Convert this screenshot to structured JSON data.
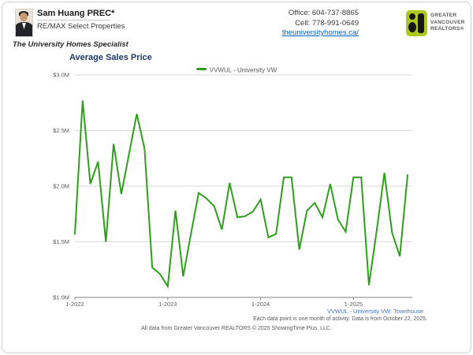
{
  "header": {
    "agent_name": "Sam Huang PREC*",
    "brokerage": "RE/MAX Select Properties",
    "tagline": "The University Homes Specialist",
    "office_phone": "Office: 604-737-8865",
    "cell_phone": "Cell: 778-991-0649",
    "website": "theuniversityhomes.ca/",
    "logo": {
      "line1": "GREATER",
      "line2": "VANCOUVER",
      "line3": "REALTORS®",
      "brand_green": "#aec81f"
    }
  },
  "chart": {
    "title": "Average Sales Price",
    "legend_label": "VVWUL - University VW",
    "series_note": "VVWUL - University VW: Townhouse",
    "data_note": "Each data point is one month of activity. Data is from October 22, 2025.",
    "copyright": "All data from Greater Vancouver REALTORS © 2025 ShowingTime Plus, LLC.",
    "line_color": "#2f9e1c",
    "title_color": "#1f3864",
    "note_color": "#4472c4"
  },
  "chart_data": {
    "type": "line",
    "title": "Average Sales Price",
    "legend": [
      "VVWUL - University VW"
    ],
    "legend_position": "top-center",
    "grid": true,
    "ylabel": "",
    "xlabel": "",
    "ylim": [
      1.0,
      3.0
    ],
    "y_unit": "$M",
    "y_ticks": [
      1.0,
      1.5,
      2.0,
      2.5,
      3.0
    ],
    "y_tick_labels": [
      "$1.0M",
      "$1.5M",
      "$2.0M",
      "$2.5M",
      "$3.0M"
    ],
    "x_tick_month_indices": [
      0,
      12,
      24,
      36
    ],
    "x_tick_labels": [
      "1-2022",
      "1-2023",
      "1-2024",
      "1-2025"
    ],
    "x": [
      "2022-01",
      "2022-02",
      "2022-03",
      "2022-04",
      "2022-05",
      "2022-06",
      "2022-07",
      "2022-08",
      "2022-09",
      "2022-10",
      "2022-11",
      "2022-12",
      "2023-01",
      "2023-02",
      "2023-03",
      "2023-04",
      "2023-05",
      "2023-06",
      "2023-07",
      "2023-08",
      "2023-09",
      "2023-10",
      "2023-11",
      "2023-12",
      "2024-01",
      "2024-02",
      "2024-03",
      "2024-04",
      "2024-05",
      "2024-06",
      "2024-07",
      "2024-08",
      "2024-09",
      "2024-10",
      "2024-11",
      "2024-12",
      "2025-01",
      "2025-02",
      "2025-03",
      "2025-04",
      "2025-05",
      "2025-06",
      "2025-07",
      "2025-08"
    ],
    "values": [
      1.57,
      2.77,
      2.02,
      2.22,
      1.5,
      2.38,
      1.93,
      2.29,
      2.65,
      2.34,
      1.27,
      1.21,
      1.1,
      1.78,
      1.19,
      1.57,
      1.94,
      1.89,
      1.82,
      1.61,
      2.03,
      1.72,
      1.73,
      1.77,
      1.88,
      1.54,
      1.57,
      2.08,
      2.08,
      1.43,
      1.78,
      1.85,
      1.72,
      2.02,
      1.7,
      1.59,
      2.08,
      2.08,
      1.11,
      1.6,
      2.12,
      1.58,
      1.37,
      2.1
    ]
  }
}
